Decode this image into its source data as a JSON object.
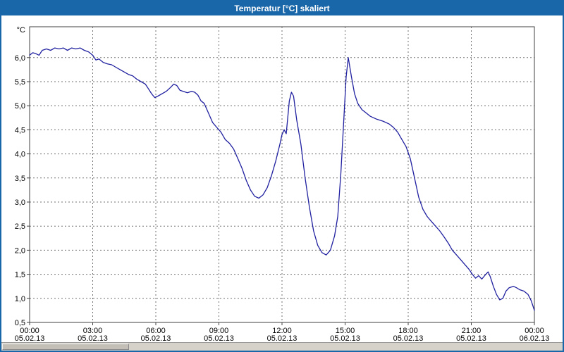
{
  "window": {
    "title": "Temperatur [°C] skaliert"
  },
  "colors": {
    "title_bar": "#1966a8",
    "line": "#2020a0",
    "grid": "#707070",
    "frame": "#404040"
  },
  "chart_data": {
    "type": "line",
    "title": "Temperatur [°C] skaliert",
    "y_unit_label": "°C",
    "ylim": [
      0.5,
      6.64
    ],
    "xlim_hours": [
      0,
      24
    ],
    "grid": "dashed",
    "legend": "none",
    "y_ticks": [
      6.0,
      5.5,
      5.0,
      4.5,
      4.0,
      3.5,
      3.0,
      2.5,
      2.0,
      1.5,
      1.0,
      0.5
    ],
    "x_ticks": [
      {
        "hour": 0,
        "time": "00:00",
        "date": "05.02.13"
      },
      {
        "hour": 3,
        "time": "03:00",
        "date": "05.02.13"
      },
      {
        "hour": 6,
        "time": "06:00",
        "date": "05.02.13"
      },
      {
        "hour": 9,
        "time": "09:00",
        "date": "05.02.13"
      },
      {
        "hour": 12,
        "time": "12:00",
        "date": "05.02.13"
      },
      {
        "hour": 15,
        "time": "15:00",
        "date": "05.02.13"
      },
      {
        "hour": 18,
        "time": "18:00",
        "date": "05.02.13"
      },
      {
        "hour": 21,
        "time": "21:00",
        "date": "05.02.13"
      },
      {
        "hour": 24,
        "time": "00:00",
        "date": "06.02.13"
      }
    ],
    "series": [
      {
        "name": "Temperatur",
        "color": "#2020a0",
        "points": [
          [
            0,
            6.05
          ],
          [
            0.15,
            6.1
          ],
          [
            0.3,
            6.08
          ],
          [
            0.45,
            6.05
          ],
          [
            0.6,
            6.15
          ],
          [
            0.8,
            6.18
          ],
          [
            1.0,
            6.15
          ],
          [
            1.2,
            6.2
          ],
          [
            1.4,
            6.18
          ],
          [
            1.6,
            6.2
          ],
          [
            1.8,
            6.15
          ],
          [
            2.0,
            6.2
          ],
          [
            2.2,
            6.18
          ],
          [
            2.4,
            6.2
          ],
          [
            2.6,
            6.15
          ],
          [
            2.8,
            6.12
          ],
          [
            3.0,
            6.05
          ],
          [
            3.15,
            5.95
          ],
          [
            3.3,
            5.97
          ],
          [
            3.5,
            5.9
          ],
          [
            3.7,
            5.87
          ],
          [
            3.9,
            5.85
          ],
          [
            4.1,
            5.8
          ],
          [
            4.3,
            5.75
          ],
          [
            4.5,
            5.7
          ],
          [
            4.7,
            5.65
          ],
          [
            4.9,
            5.62
          ],
          [
            5.1,
            5.55
          ],
          [
            5.3,
            5.5
          ],
          [
            5.5,
            5.45
          ],
          [
            5.65,
            5.35
          ],
          [
            5.8,
            5.25
          ],
          [
            5.95,
            5.17
          ],
          [
            6.1,
            5.2
          ],
          [
            6.3,
            5.25
          ],
          [
            6.5,
            5.3
          ],
          [
            6.7,
            5.38
          ],
          [
            6.85,
            5.45
          ],
          [
            7.0,
            5.42
          ],
          [
            7.15,
            5.32
          ],
          [
            7.3,
            5.3
          ],
          [
            7.5,
            5.27
          ],
          [
            7.7,
            5.3
          ],
          [
            7.85,
            5.28
          ],
          [
            8.0,
            5.22
          ],
          [
            8.15,
            5.1
          ],
          [
            8.3,
            5.05
          ],
          [
            8.5,
            4.85
          ],
          [
            8.7,
            4.65
          ],
          [
            8.9,
            4.55
          ],
          [
            9.1,
            4.45
          ],
          [
            9.3,
            4.3
          ],
          [
            9.5,
            4.22
          ],
          [
            9.7,
            4.1
          ],
          [
            9.9,
            3.9
          ],
          [
            10.1,
            3.7
          ],
          [
            10.3,
            3.45
          ],
          [
            10.5,
            3.25
          ],
          [
            10.7,
            3.12
          ],
          [
            10.9,
            3.08
          ],
          [
            11.1,
            3.15
          ],
          [
            11.3,
            3.3
          ],
          [
            11.5,
            3.55
          ],
          [
            11.7,
            3.85
          ],
          [
            11.9,
            4.2
          ],
          [
            12.0,
            4.4
          ],
          [
            12.1,
            4.5
          ],
          [
            12.2,
            4.42
          ],
          [
            12.35,
            5.1
          ],
          [
            12.45,
            5.28
          ],
          [
            12.55,
            5.2
          ],
          [
            12.7,
            4.7
          ],
          [
            12.9,
            4.2
          ],
          [
            13.1,
            3.5
          ],
          [
            13.3,
            2.9
          ],
          [
            13.5,
            2.4
          ],
          [
            13.7,
            2.1
          ],
          [
            13.9,
            1.95
          ],
          [
            14.1,
            1.9
          ],
          [
            14.3,
            2.0
          ],
          [
            14.5,
            2.3
          ],
          [
            14.65,
            2.7
          ],
          [
            14.8,
            3.6
          ],
          [
            14.95,
            4.8
          ],
          [
            15.05,
            5.6
          ],
          [
            15.15,
            6.0
          ],
          [
            15.3,
            5.6
          ],
          [
            15.45,
            5.25
          ],
          [
            15.6,
            5.05
          ],
          [
            15.8,
            4.92
          ],
          [
            16.0,
            4.85
          ],
          [
            16.2,
            4.78
          ],
          [
            16.5,
            4.72
          ],
          [
            16.8,
            4.68
          ],
          [
            17.1,
            4.62
          ],
          [
            17.3,
            4.55
          ],
          [
            17.5,
            4.45
          ],
          [
            17.7,
            4.3
          ],
          [
            17.9,
            4.15
          ],
          [
            18.1,
            3.9
          ],
          [
            18.3,
            3.5
          ],
          [
            18.5,
            3.1
          ],
          [
            18.7,
            2.85
          ],
          [
            18.9,
            2.7
          ],
          [
            19.1,
            2.6
          ],
          [
            19.3,
            2.5
          ],
          [
            19.5,
            2.4
          ],
          [
            19.7,
            2.28
          ],
          [
            19.9,
            2.15
          ],
          [
            20.1,
            2.0
          ],
          [
            20.3,
            1.9
          ],
          [
            20.5,
            1.8
          ],
          [
            20.7,
            1.7
          ],
          [
            20.9,
            1.6
          ],
          [
            21.05,
            1.5
          ],
          [
            21.2,
            1.42
          ],
          [
            21.35,
            1.47
          ],
          [
            21.5,
            1.4
          ],
          [
            21.65,
            1.48
          ],
          [
            21.8,
            1.55
          ],
          [
            21.9,
            1.45
          ],
          [
            22.05,
            1.25
          ],
          [
            22.2,
            1.08
          ],
          [
            22.35,
            0.97
          ],
          [
            22.5,
            1.0
          ],
          [
            22.65,
            1.15
          ],
          [
            22.8,
            1.22
          ],
          [
            23.0,
            1.25
          ],
          [
            23.15,
            1.22
          ],
          [
            23.3,
            1.18
          ],
          [
            23.5,
            1.15
          ],
          [
            23.7,
            1.08
          ],
          [
            23.85,
            0.95
          ],
          [
            24.0,
            0.75
          ]
        ]
      }
    ]
  }
}
